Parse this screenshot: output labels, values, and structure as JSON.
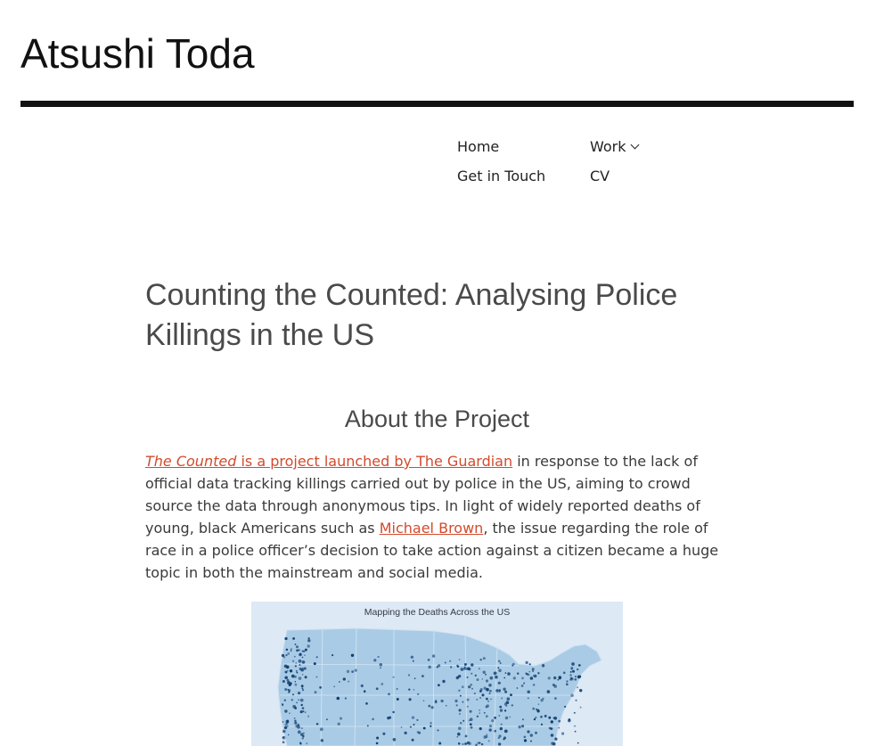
{
  "site": {
    "title": "Atsushi Toda"
  },
  "nav": {
    "home": "Home",
    "work": "Work",
    "get_in_touch": "Get in Touch",
    "cv": "CV"
  },
  "post": {
    "title": "Counting the Counted: Analysing Police Killings in the US",
    "section_heading": "About the Project",
    "intro": {
      "link1_italic": "The Counted",
      "link1_rest": " is a project launched by The Guardian",
      "text1": " in response to the lack of official data tracking killings carried out by police in the US, aiming to crowd source the data through anonymous tips. In light of widely reported deaths of young, black Americans such as ",
      "link2": "Michael Brown",
      "text2": ", the issue regarding the role of race in a police officer’s decision to take action against a citizen became a huge topic in both the mainstream and social media."
    },
    "figure": {
      "caption": "Mapping the Deaths Across the US"
    }
  },
  "colors": {
    "link": "#d24b2c",
    "rule": "#111111",
    "map_land": "#a9cbe6",
    "map_dots": "#0f3d6e"
  }
}
